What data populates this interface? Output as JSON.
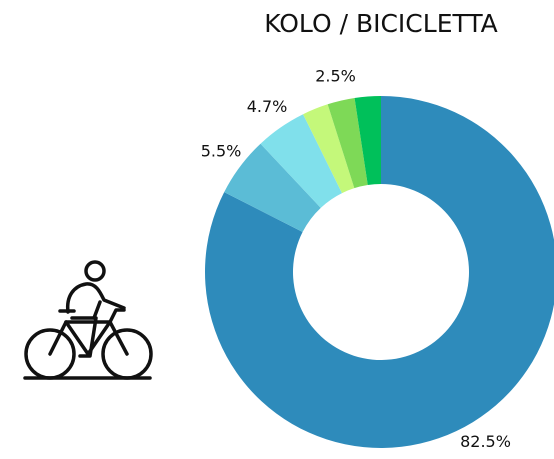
{
  "chart_data": {
    "type": "donut",
    "title": "KOLO / BICICLETTA",
    "values": [
      82.5,
      5.5,
      4.7,
      2.4,
      2.5,
      2.4
    ],
    "value_labels": [
      "82.5%",
      "5.5%",
      "4.7%",
      null,
      "2.5%",
      null
    ],
    "colors": [
      "#2e8bbb",
      "#5bbcd6",
      "#80e0eb",
      "#c4f87a",
      "#7ed957",
      "#00c05a"
    ]
  }
}
